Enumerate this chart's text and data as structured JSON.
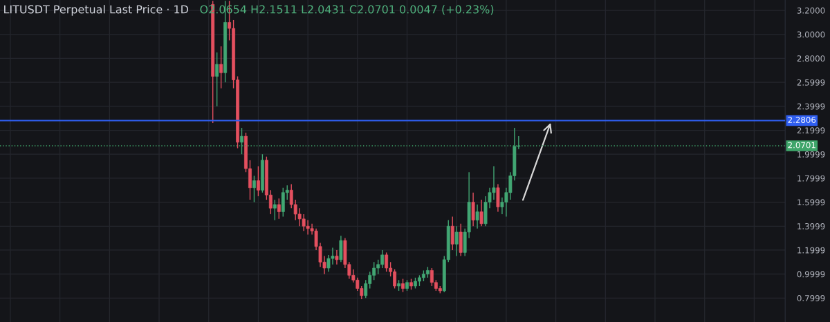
{
  "chart_data": {
    "type": "candlestick",
    "title": "LITUSDT Perpetual Last Price · 1D",
    "subtitle": "O2.0654 H2.1511 L2.0431 C2.0701 0.0047 (+0.23%)",
    "categories": [
      null,
      null,
      null,
      null,
      null,
      null,
      null,
      null,
      null,
      null,
      null,
      null,
      null,
      null,
      null,
      null,
      null,
      null,
      null,
      null,
      null,
      null,
      null,
      null,
      null,
      null,
      null,
      null,
      null,
      null,
      null,
      null,
      null,
      null,
      null,
      null,
      null,
      null,
      null,
      null,
      null,
      null,
      null,
      null,
      null,
      null,
      null,
      null,
      null,
      null,
      null,
      null,
      null,
      null,
      null,
      null,
      null,
      null,
      null,
      null,
      null,
      null,
      null,
      null,
      null,
      null,
      null,
      null,
      null,
      null,
      null,
      null,
      null,
      null,
      null,
      null,
      null,
      null,
      null,
      null,
      null,
      null,
      null,
      null,
      null,
      null,
      null,
      null,
      null,
      null,
      null,
      null,
      null,
      null,
      null,
      null,
      null,
      null,
      null,
      null,
      null,
      null,
      null,
      null,
      null,
      null,
      null,
      null,
      null,
      null,
      null,
      null,
      null,
      null,
      null,
      null,
      null,
      null,
      null,
      null,
      null,
      null,
      null,
      null,
      null,
      null,
      null,
      null,
      null,
      null,
      null,
      null,
      null,
      null,
      null,
      null,
      null,
      null,
      null,
      null,
      null,
      null,
      null,
      null,
      null,
      null,
      null,
      null,
      null,
      null,
      null,
      null,
      null,
      null,
      null,
      null,
      null,
      null,
      null,
      null,
      null,
      null,
      null,
      null,
      null,
      null,
      null,
      null,
      null,
      null,
      null,
      null,
      null,
      null,
      null,
      null,
      null,
      null,
      null,
      null,
      null,
      null,
      null,
      null,
      null,
      null,
      null,
      null,
      null,
      null
    ],
    "ohlc": [
      null,
      null,
      null,
      null,
      null,
      null,
      null,
      null,
      null,
      null,
      null,
      null,
      null,
      null,
      null,
      null,
      null,
      null,
      null,
      null,
      null,
      null,
      null,
      null,
      null,
      null,
      null,
      null,
      null,
      null,
      null,
      null,
      null,
      null,
      null,
      null,
      null,
      null,
      null,
      null,
      null,
      null,
      null,
      null,
      null,
      null,
      null,
      null,
      null,
      null,
      null,
      [
        3.25,
        3.28,
        2.26,
        2.65
      ],
      [
        2.65,
        2.85,
        2.4,
        2.75
      ],
      [
        2.75,
        2.9,
        2.55,
        2.68
      ],
      [
        2.68,
        3.28,
        2.6,
        3.1
      ],
      [
        3.1,
        3.28,
        2.95,
        3.05
      ],
      [
        3.05,
        3.12,
        2.55,
        2.62
      ],
      [
        2.62,
        2.65,
        2.05,
        2.1
      ],
      [
        2.1,
        2.22,
        2.0,
        2.15
      ],
      [
        2.15,
        2.18,
        1.85,
        1.88
      ],
      [
        1.88,
        1.95,
        1.62,
        1.72
      ],
      [
        1.72,
        1.82,
        1.6,
        1.78
      ],
      [
        1.78,
        1.9,
        1.65,
        1.7
      ],
      [
        1.7,
        2.0,
        1.68,
        1.95
      ],
      [
        1.95,
        1.98,
        1.62,
        1.66
      ],
      [
        1.66,
        1.7,
        1.5,
        1.55
      ],
      [
        1.55,
        1.62,
        1.45,
        1.58
      ],
      [
        1.58,
        1.63,
        1.46,
        1.52
      ],
      [
        1.52,
        1.72,
        1.48,
        1.68
      ],
      [
        1.68,
        1.74,
        1.62,
        1.7
      ],
      [
        1.7,
        1.75,
        1.55,
        1.58
      ],
      [
        1.58,
        1.62,
        1.45,
        1.5
      ],
      [
        1.5,
        1.55,
        1.4,
        1.46
      ],
      [
        1.46,
        1.5,
        1.36,
        1.4
      ],
      [
        1.4,
        1.45,
        1.33,
        1.38
      ],
      [
        1.38,
        1.42,
        1.33,
        1.36
      ],
      [
        1.36,
        1.38,
        1.2,
        1.23
      ],
      [
        1.23,
        1.26,
        1.06,
        1.1
      ],
      [
        1.1,
        1.15,
        1.0,
        1.05
      ],
      [
        1.05,
        1.16,
        1.02,
        1.13
      ],
      [
        1.13,
        1.22,
        1.08,
        1.15
      ],
      [
        1.15,
        1.2,
        1.08,
        1.12
      ],
      [
        1.12,
        1.32,
        1.1,
        1.28
      ],
      [
        1.28,
        1.3,
        1.05,
        1.08
      ],
      [
        1.08,
        1.1,
        0.96,
        0.99
      ],
      [
        0.99,
        1.04,
        0.93,
        0.95
      ],
      [
        0.95,
        0.97,
        0.86,
        0.88
      ],
      [
        0.88,
        0.9,
        0.79,
        0.82
      ],
      [
        0.82,
        0.95,
        0.8,
        0.92
      ],
      [
        0.92,
        1.02,
        0.88,
        0.99
      ],
      [
        0.99,
        1.1,
        0.95,
        1.05
      ],
      [
        1.05,
        1.12,
        1.0,
        1.08
      ],
      [
        1.08,
        1.2,
        1.05,
        1.16
      ],
      [
        1.16,
        1.18,
        1.02,
        1.05
      ],
      [
        1.05,
        1.1,
        0.98,
        1.02
      ],
      [
        1.02,
        1.04,
        0.88,
        0.9
      ],
      [
        0.9,
        0.95,
        0.86,
        0.92
      ],
      [
        0.92,
        0.96,
        0.85,
        0.88
      ],
      [
        0.88,
        0.95,
        0.86,
        0.93
      ],
      [
        0.93,
        0.96,
        0.87,
        0.9
      ],
      [
        0.9,
        0.97,
        0.88,
        0.94
      ],
      [
        0.94,
        0.99,
        0.9,
        0.97
      ],
      [
        0.97,
        1.03,
        0.94,
        1.0
      ],
      [
        1.0,
        1.06,
        0.97,
        1.03
      ],
      [
        1.03,
        1.05,
        0.9,
        0.93
      ],
      [
        0.93,
        0.95,
        0.86,
        0.88
      ],
      [
        0.88,
        0.9,
        0.84,
        0.86
      ],
      [
        0.86,
        1.15,
        0.85,
        1.12
      ],
      [
        1.12,
        1.45,
        1.1,
        1.4
      ],
      [
        1.4,
        1.48,
        1.2,
        1.25
      ],
      [
        1.25,
        1.4,
        1.15,
        1.35
      ],
      [
        1.35,
        1.42,
        1.15,
        1.18
      ],
      [
        1.18,
        1.38,
        1.15,
        1.35
      ],
      [
        1.35,
        1.85,
        1.3,
        1.6
      ],
      [
        1.6,
        1.68,
        1.4,
        1.45
      ],
      [
        1.45,
        1.58,
        1.38,
        1.52
      ],
      [
        1.52,
        1.62,
        1.4,
        1.42
      ],
      [
        1.42,
        1.65,
        1.4,
        1.6
      ],
      [
        1.6,
        1.72,
        1.55,
        1.68
      ],
      [
        1.68,
        1.9,
        1.62,
        1.72
      ],
      [
        1.72,
        1.75,
        1.52,
        1.56
      ],
      [
        1.56,
        1.64,
        1.5,
        1.6
      ],
      [
        1.6,
        1.72,
        1.48,
        1.68
      ],
      [
        1.68,
        1.85,
        1.62,
        1.82
      ],
      [
        1.82,
        2.22,
        1.78,
        2.0654
      ],
      [
        2.0654,
        2.1511,
        2.0431,
        2.0701
      ],
      null,
      null,
      null,
      null,
      null,
      null,
      null,
      null,
      null,
      null,
      null,
      null,
      null,
      null,
      null,
      null,
      null,
      null,
      null,
      null,
      null,
      null,
      null,
      null,
      null,
      null,
      null,
      null,
      null,
      null,
      null,
      null,
      null,
      null,
      null,
      null,
      null,
      null,
      null,
      null,
      null,
      null,
      null,
      null,
      null,
      null,
      null,
      null,
      null,
      null,
      null,
      null,
      null,
      null,
      null,
      null,
      null,
      null,
      null,
      null,
      null,
      null,
      null,
      null
    ],
    "colors": [
      null,
      null,
      null,
      null,
      null,
      null,
      null,
      null,
      null,
      null,
      null,
      null,
      null,
      null,
      null,
      null,
      null,
      null,
      null,
      null,
      null,
      null,
      null,
      null,
      null,
      null,
      null,
      null,
      null,
      null,
      null,
      null,
      null,
      null,
      null,
      null,
      null,
      null,
      null,
      null,
      null,
      null,
      null,
      null,
      null,
      null,
      null,
      null,
      null,
      null,
      null,
      "#e4505f",
      "#42a673",
      "#e4505f",
      "#42a673",
      "#e4505f",
      "#e4505f",
      "#e4505f",
      "#42a673",
      "#e4505f",
      "#e4505f",
      "#42a673",
      "#e4505f",
      "#42a673",
      "#e4505f",
      "#e4505f",
      "#42a673",
      "#e4505f",
      "#42a673",
      "#42a673",
      "#e4505f",
      "#e4505f",
      "#e4505f",
      "#e4505f",
      "#e4505f",
      "#e4505f",
      "#e4505f",
      "#e4505f",
      "#e4505f",
      "#42a673",
      "#42a673",
      "#e4505f",
      "#42a673",
      "#e4505f",
      "#e4505f",
      "#e4505f",
      "#e4505f",
      "#e4505f",
      "#42a673",
      "#42a673",
      "#42a673",
      "#42a673",
      "#42a673",
      "#e4505f",
      "#e4505f",
      "#e4505f",
      "#42a673",
      "#e4505f",
      "#42a673",
      "#e4505f",
      "#42a673",
      "#42a673",
      "#42a673",
      "#42a673",
      "#e4505f",
      "#e4505f",
      "#e4505f",
      "#42a673",
      "#42a673",
      "#e4505f",
      "#42a673",
      "#e4505f",
      "#42a673",
      "#42a673",
      "#e4505f",
      "#42a673",
      "#e4505f",
      "#42a673",
      "#42a673",
      "#42a673",
      "#e4505f",
      "#42a673",
      "#42a673",
      "#42a673",
      "#42a673",
      "#42a673",
      null,
      null,
      null,
      null,
      null,
      null,
      null,
      null,
      null,
      null,
      null,
      null,
      null,
      null,
      null,
      null,
      null,
      null,
      null,
      null,
      null,
      null,
      null,
      null,
      null,
      null,
      null,
      null,
      null,
      null,
      null,
      null,
      null,
      null,
      null,
      null,
      null,
      null,
      null,
      null,
      null,
      null,
      null,
      null,
      null,
      null,
      null,
      null,
      null,
      null,
      null,
      null,
      null,
      null,
      null,
      null,
      null,
      null,
      null,
      null,
      null,
      null,
      null,
      null
    ],
    "ylim": [
      0.6,
      3.287
    ],
    "yticks": [
      {
        "value": 3.2,
        "label": "3.2000"
      },
      {
        "value": 3.0,
        "label": "3.0000"
      },
      {
        "value": 2.8,
        "label": "2.8000"
      },
      2.5999,
      2.3999,
      2.1999,
      1.9999,
      1.7999,
      1.5999,
      1.3999,
      1.1999,
      0.9999,
      0.7999
    ],
    "ref_lines": [
      {
        "axis": "y",
        "value": 2.2806,
        "label": "2.2806",
        "color": "#2f5ef0",
        "line_style": "solid"
      },
      {
        "axis": "y",
        "value": 2.0701,
        "label": "2.0701",
        "color": "#3fa56a",
        "line_style": "dotted"
      }
    ],
    "grid": true,
    "tick_labels": "y"
  }
}
